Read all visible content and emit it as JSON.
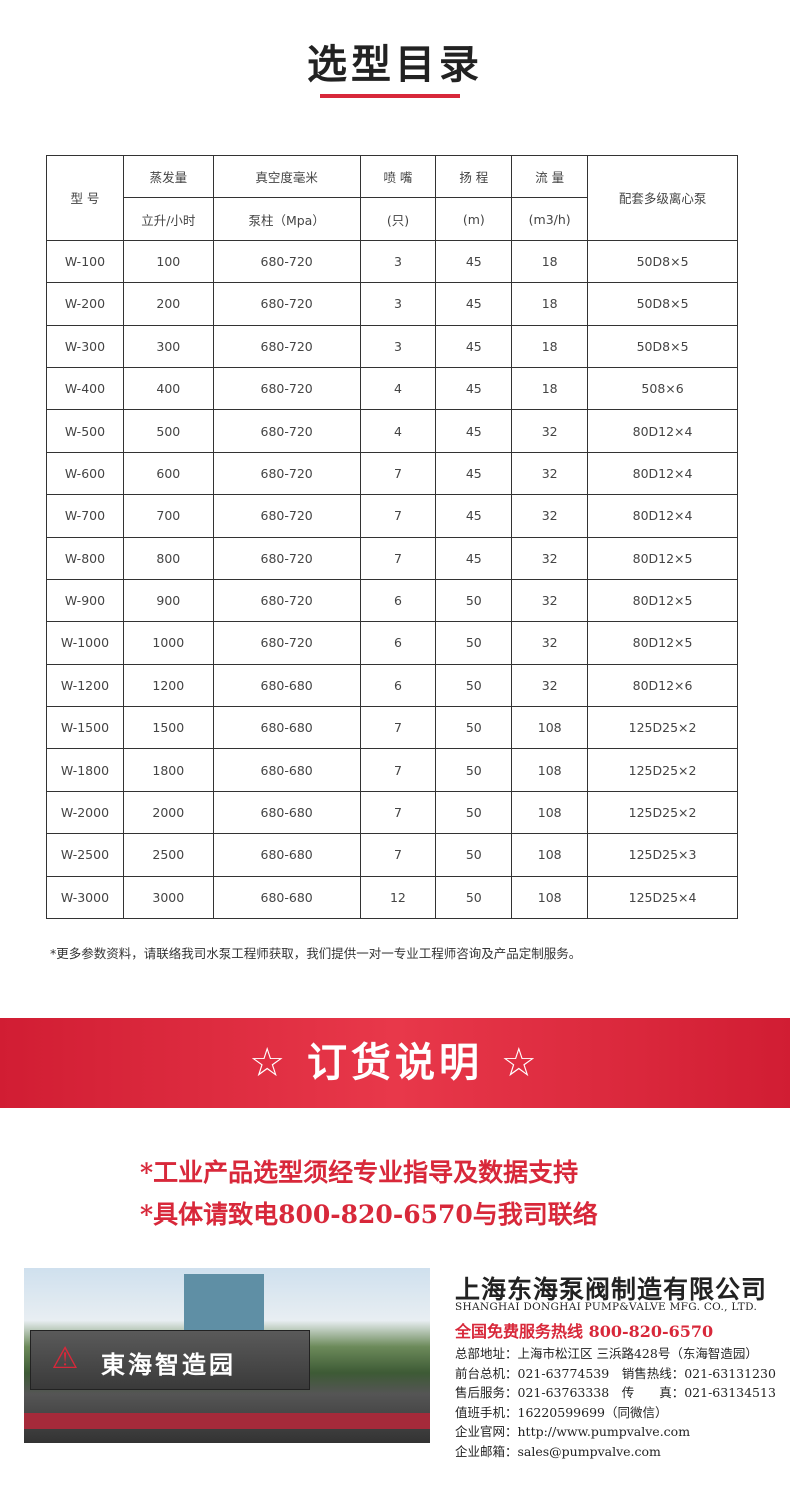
{
  "title": "选型目录",
  "table": {
    "header_row1": [
      "型 号",
      "蒸发量",
      "真空度毫米",
      "喷 嘴",
      "扬 程",
      "流 量",
      "配套多级离心泵"
    ],
    "header_row2": [
      "立升/小时",
      "泵柱（Mpa）",
      "(只)",
      "(m)",
      "(m3/h)"
    ],
    "rows": [
      [
        "W-100",
        "100",
        "680-720",
        "3",
        "45",
        "18",
        "50D8×5"
      ],
      [
        "W-200",
        "200",
        "680-720",
        "3",
        "45",
        "18",
        "50D8×5"
      ],
      [
        "W-300",
        "300",
        "680-720",
        "3",
        "45",
        "18",
        "50D8×5"
      ],
      [
        "W-400",
        "400",
        "680-720",
        "4",
        "45",
        "18",
        "508×6"
      ],
      [
        "W-500",
        "500",
        "680-720",
        "4",
        "45",
        "32",
        "80D12×4"
      ],
      [
        "W-600",
        "600",
        "680-720",
        "7",
        "45",
        "32",
        "80D12×4"
      ],
      [
        "W-700",
        "700",
        "680-720",
        "7",
        "45",
        "32",
        "80D12×4"
      ],
      [
        "W-800",
        "800",
        "680-720",
        "7",
        "45",
        "32",
        "80D12×5"
      ],
      [
        "W-900",
        "900",
        "680-720",
        "6",
        "50",
        "32",
        "80D12×5"
      ],
      [
        "W-1000",
        "1000",
        "680-720",
        "6",
        "50",
        "32",
        "80D12×5"
      ],
      [
        "W-1200",
        "1200",
        "680-680",
        "6",
        "50",
        "32",
        "80D12×6"
      ],
      [
        "W-1500",
        "1500",
        "680-680",
        "7",
        "50",
        "108",
        "125D25×2"
      ],
      [
        "W-1800",
        "1800",
        "680-680",
        "7",
        "50",
        "108",
        "125D25×2"
      ],
      [
        "W-2000",
        "2000",
        "680-680",
        "7",
        "50",
        "108",
        "125D25×2"
      ],
      [
        "W-2500",
        "2500",
        "680-680",
        "7",
        "50",
        "108",
        "125D25×3"
      ],
      [
        "W-3000",
        "3000",
        "680-680",
        "12",
        "50",
        "108",
        "125D25×4"
      ]
    ]
  },
  "note": "*更多参数资料，请联络我司水泵工程师获取，我们提供一对一专业工程师咨询及产品定制服务。",
  "banner": "☆ 订货说明 ☆",
  "order_lines": [
    "*工业产品选型须经专业指导及数据支持",
    "*具体请致电800-820-6570与我司联络"
  ],
  "photo": {
    "sign_text": "東海智造园"
  },
  "company": {
    "name_cn": "上海东海泵阀制造有限公司",
    "name_en": "SHANGHAI DONGHAI PUMP&VALVE MFG. CO., LTD.",
    "hotline": "全国免费服务热线  800-820-6570",
    "lines": [
      "总部地址：上海市松江区 三浜路428号（东海智造园）",
      "前台总机：021-63774539　销售热线：021-63131230",
      "售后服务：021-63763338　传　　真：021-63134513",
      "值班手机：16220599699（同微信）",
      "企业官网：http://www.pumpvalve.com",
      "企业邮箱：sales@pumpvalve.com"
    ]
  },
  "colors": {
    "accent": "#d8283a"
  }
}
